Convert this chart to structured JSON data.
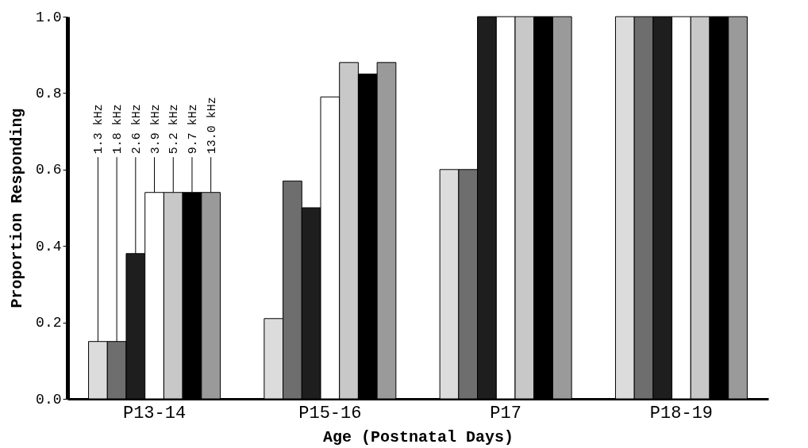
{
  "chart_data": {
    "type": "bar",
    "xlabel": "Age (Postnatal Days)",
    "ylabel": "Proportion Responding",
    "categories": [
      "P13-14",
      "P15-16",
      "P17",
      "P18-19"
    ],
    "series": [
      {
        "name": "1.3 kHz",
        "color": "#dcdcdc",
        "values": [
          0.15,
          0.21,
          0.6,
          1.0
        ]
      },
      {
        "name": "1.8 kHz",
        "color": "#6e6e6e",
        "values": [
          0.15,
          0.57,
          0.6,
          1.0
        ]
      },
      {
        "name": "2.6 kHz",
        "color": "#1e1e1e",
        "values": [
          0.38,
          0.5,
          1.0,
          1.0
        ]
      },
      {
        "name": "3.9 kHz",
        "color": "#ffffff",
        "values": [
          0.54,
          0.79,
          1.0,
          1.0
        ]
      },
      {
        "name": "5.2 kHz",
        "color": "#c8c8c8",
        "values": [
          0.54,
          0.88,
          1.0,
          1.0
        ]
      },
      {
        "name": "9.7 kHz",
        "color": "#000000",
        "values": [
          0.54,
          0.85,
          1.0,
          1.0
        ]
      },
      {
        "name": "13.0 kHz",
        "color": "#9a9a9a",
        "values": [
          0.54,
          0.88,
          1.0,
          1.0
        ]
      }
    ],
    "ylim": [
      0,
      1.0
    ],
    "yticks": [
      {
        "value": 0,
        "label": "0.0"
      },
      0.2,
      0.4,
      0.6,
      0.8,
      {
        "value": 1.0,
        "label": "1.0"
      }
    ],
    "grid": false,
    "legend": false
  }
}
